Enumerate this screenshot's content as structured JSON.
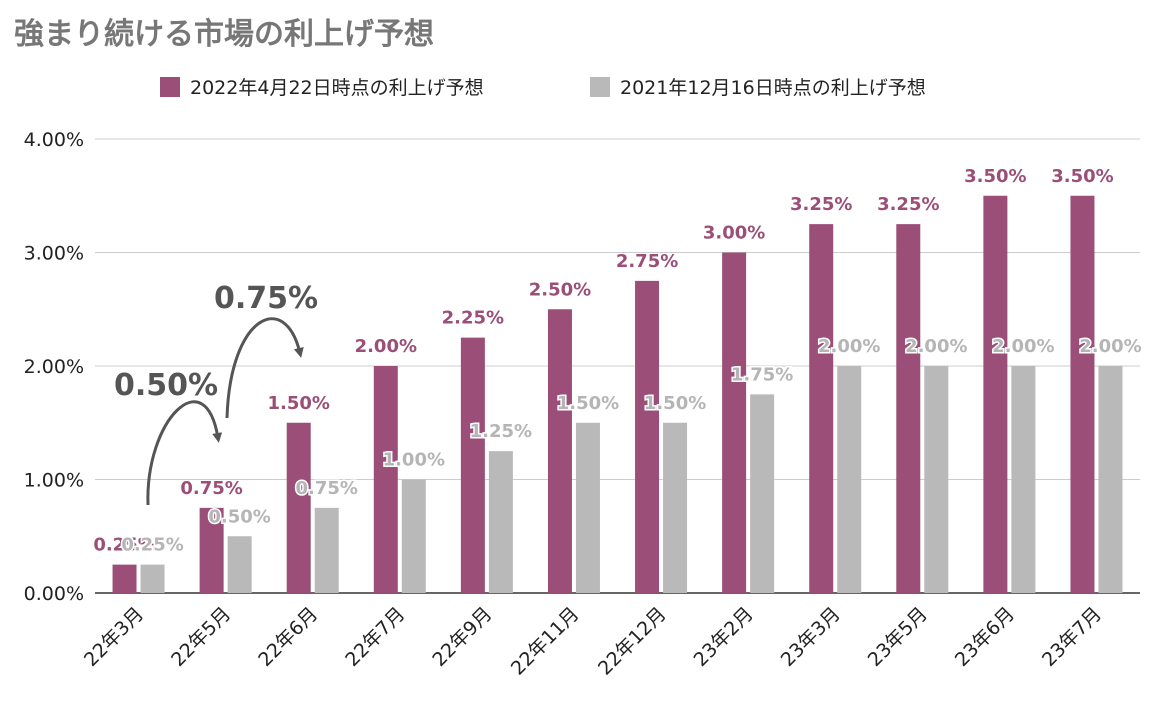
{
  "chart_data": {
    "type": "bar",
    "title": "強まり続ける市場の利上げ予想",
    "categories": [
      "22年3月",
      "22年5月",
      "22年6月",
      "22年7月",
      "22年9月",
      "22年11月",
      "22年12月",
      "23年2月",
      "23年3月",
      "23年5月",
      "23年6月",
      "23年7月"
    ],
    "series": [
      {
        "name": "2022年4月22日時点の利上げ予想",
        "color": "#9b4f78",
        "values": [
          0.25,
          0.75,
          1.5,
          2.0,
          2.25,
          2.5,
          2.75,
          3.0,
          3.25,
          3.25,
          3.5,
          3.5
        ],
        "labels": [
          "0.25%",
          "0.75%",
          "1.50%",
          "2.00%",
          "2.25%",
          "2.50%",
          "2.75%",
          "3.00%",
          "3.25%",
          "3.25%",
          "3.50%",
          "3.50%"
        ]
      },
      {
        "name": "2021年12月16日時点の利上げ予想",
        "color": "#b9b9b9",
        "values": [
          0.25,
          0.5,
          0.75,
          1.0,
          1.25,
          1.5,
          1.5,
          1.75,
          2.0,
          2.0,
          2.0,
          2.0
        ],
        "labels": [
          "0.25%",
          "0.50%",
          "0.75%",
          "1.00%",
          "1.25%",
          "1.50%",
          "1.50%",
          "1.75%",
          "2.00%",
          "2.00%",
          "2.00%",
          "2.00%"
        ]
      }
    ],
    "y_ticks": [
      0,
      1,
      2,
      3,
      4
    ],
    "y_tick_labels": [
      "0.00%",
      "1.00%",
      "2.00%",
      "3.00%",
      "4.00%"
    ],
    "ylim": [
      0,
      4
    ],
    "xlabel": "",
    "ylabel": "",
    "grid": true,
    "legend_position": "top-center",
    "annotations": [
      {
        "text": "0.50%",
        "from_category": 0,
        "to_category": 1
      },
      {
        "text": "0.75%",
        "from_category": 1,
        "to_category": 2
      }
    ]
  }
}
